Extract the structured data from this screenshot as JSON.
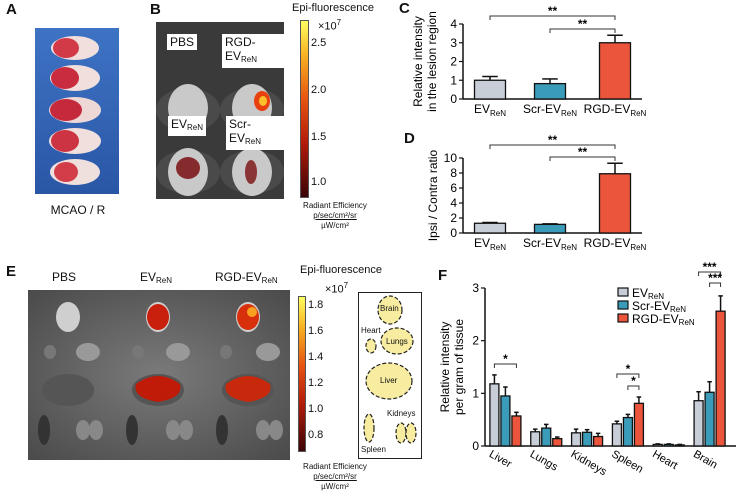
{
  "panels": {
    "a": "A",
    "b": "B",
    "c": "C",
    "d": "D",
    "e": "E",
    "f": "F"
  },
  "panel_a": {
    "caption": "MCAO / R"
  },
  "panel_b": {
    "labels": [
      {
        "main": "PBS",
        "sub": ""
      },
      {
        "main": "RGD-EV",
        "sub": "ReN"
      },
      {
        "main": "EV",
        "sub": "ReN"
      },
      {
        "main": "Scr-EV",
        "sub": "ReN"
      }
    ],
    "colorbar": {
      "title": "Epi-fluorescence",
      "multiplier": "×10",
      "exponent": "7",
      "ticks": [
        "2.5",
        "2.0",
        "1.5",
        "1.0"
      ],
      "unit_label": "Radiant Efficiency",
      "unit_num": "p/sec/cm²/sr",
      "unit_den": "µW/cm²"
    }
  },
  "panel_e": {
    "columns": [
      {
        "main": "PBS",
        "sub": ""
      },
      {
        "main": "EV",
        "sub": "ReN"
      },
      {
        "main": "RGD-EV",
        "sub": "ReN"
      }
    ],
    "colorbar": {
      "title": "Epi-fluorescence",
      "multiplier": "×10",
      "exponent": "7",
      "ticks": [
        "1.8",
        "1.6",
        "1.4",
        "1.2",
        "1.0",
        "0.8"
      ],
      "unit_label": "Radiant Efficiency",
      "unit_num": "p/sec/cm²/sr",
      "unit_den": "µW/cm²"
    },
    "organ_map": {
      "brain": "Brain",
      "heart": "Heart",
      "lungs": "Lungs",
      "liver": "Liver",
      "kidneys": "Kidneys",
      "spleen": "Spleen"
    }
  },
  "colors": {
    "ev": "#c8ced8",
    "scr": "#3b9cb9",
    "rgd": "#ea553b"
  },
  "chart_data": [
    {
      "id": "C",
      "type": "bar",
      "ylabel": [
        "Relative intensity",
        "in the lesion region"
      ],
      "categories": [
        "EV",
        "Scr-EV",
        "RGD-EV"
      ],
      "category_subscript": "ReN",
      "values": [
        1.0,
        0.82,
        3.0
      ],
      "errors": [
        0.2,
        0.25,
        0.4
      ],
      "ylim": [
        0,
        4
      ],
      "yticks": [
        "0",
        "1",
        "2",
        "3",
        "4"
      ],
      "significance": [
        {
          "from": 0,
          "to": 2,
          "label": "**"
        },
        {
          "from": 1,
          "to": 2,
          "label": "**"
        }
      ]
    },
    {
      "id": "D",
      "type": "bar",
      "ylabel": [
        "Ipsi / Contra ratio"
      ],
      "categories": [
        "EV",
        "Scr-EV",
        "RGD-EV"
      ],
      "category_subscript": "ReN",
      "values": [
        1.3,
        1.15,
        7.9
      ],
      "errors": [
        0.1,
        0.07,
        1.4
      ],
      "ylim": [
        0,
        10
      ],
      "yticks": [
        "0",
        "2",
        "4",
        "6",
        "8",
        "10"
      ],
      "significance": [
        {
          "from": 0,
          "to": 2,
          "label": "**"
        },
        {
          "from": 1,
          "to": 2,
          "label": "**"
        }
      ]
    },
    {
      "id": "F",
      "type": "bar",
      "ylabel": [
        "Relative intensity",
        "per gram of tissue"
      ],
      "categories": [
        "Liver",
        "Lungs",
        "Kidneys",
        "Spleen",
        "Heart",
        "Brain"
      ],
      "series": [
        {
          "name": "EV",
          "sub": "ReN",
          "values": [
            1.18,
            0.27,
            0.25,
            0.42,
            0.03,
            0.86
          ],
          "errors": [
            0.17,
            0.05,
            0.07,
            0.05,
            0.01,
            0.17
          ]
        },
        {
          "name": "Scr-EV",
          "sub": "ReN",
          "values": [
            0.95,
            0.34,
            0.26,
            0.54,
            0.03,
            1.02
          ],
          "errors": [
            0.17,
            0.07,
            0.05,
            0.06,
            0.01,
            0.2
          ]
        },
        {
          "name": "RGD-EV",
          "sub": "ReN",
          "values": [
            0.57,
            0.14,
            0.18,
            0.81,
            0.02,
            2.56
          ],
          "errors": [
            0.07,
            0.03,
            0.06,
            0.12,
            0.01,
            0.29
          ]
        }
      ],
      "ylim": [
        0,
        3
      ],
      "yticks": [
        "0",
        "1",
        "2",
        "3"
      ],
      "legend": "top-right",
      "significance": [
        {
          "group": 0,
          "from": 0,
          "to": 2,
          "label": "*"
        },
        {
          "group": 3,
          "from": 0,
          "to": 2,
          "label": "*"
        },
        {
          "group": 3,
          "from": 1,
          "to": 2,
          "label": "*"
        },
        {
          "group": 5,
          "from": 0,
          "to": 2,
          "label": "***"
        },
        {
          "group": 5,
          "from": 1,
          "to": 2,
          "label": "***"
        }
      ]
    }
  ]
}
